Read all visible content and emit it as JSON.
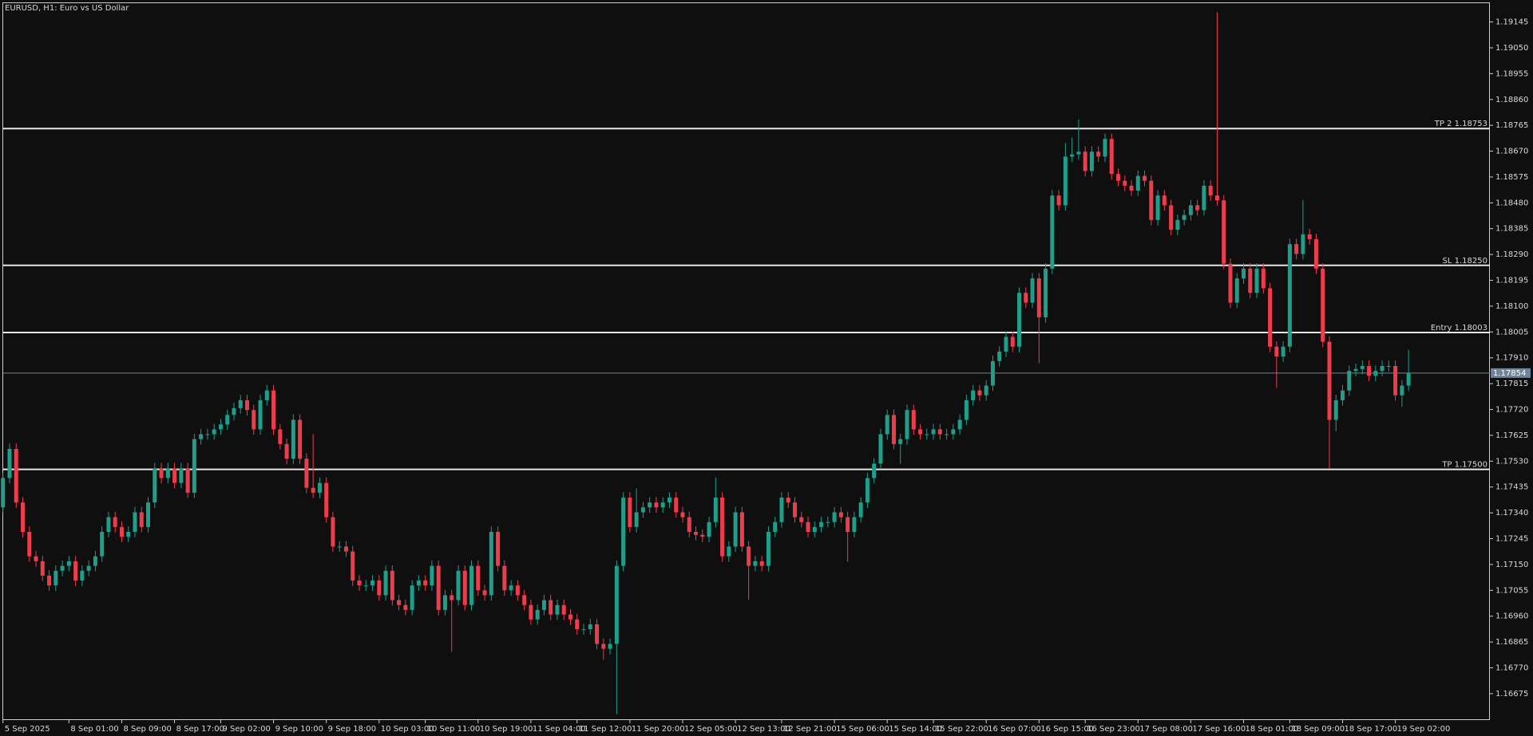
{
  "chart_data": {
    "type": "candlestick",
    "title": "EURUSD, H1:  Euro vs US Dollar",
    "up_color": "#1f9e89",
    "down_color": "#ec3d4d",
    "level_color": "#e6e6e6",
    "price_line_color": "#6f849a",
    "ylim": [
      1.16578,
      1.19217
    ],
    "yticks": [
      1.19145,
      {
        "value": 1.1905,
        "label": "1.19050"
      },
      1.18955,
      {
        "value": 1.1886,
        "label": "1.18860"
      },
      1.18765,
      {
        "value": 1.1867,
        "label": "1.18670"
      },
      1.18575,
      {
        "value": 1.1848,
        "label": "1.18480"
      },
      1.18385,
      {
        "value": 1.1829,
        "label": "1.18290"
      },
      1.18195,
      {
        "value": 1.181,
        "label": "1.18100"
      },
      1.18005,
      {
        "value": 1.1791,
        "label": "1.17910"
      },
      1.17815,
      {
        "value": 1.1772,
        "label": "1.17720"
      },
      1.17625,
      {
        "value": 1.1753,
        "label": "1.17530"
      },
      1.17435,
      {
        "value": 1.1734,
        "label": "1.17340"
      },
      1.17245,
      {
        "value": 1.1715,
        "label": "1.17150"
      },
      1.17055,
      {
        "value": 1.1696,
        "label": "1.16960"
      },
      1.16865,
      {
        "value": 1.1677,
        "label": "1.16770"
      },
      1.16675
    ],
    "levels": [
      {
        "label": "TP 2 1.18753",
        "value": 1.18753
      },
      {
        "label": "SL 1.18250",
        "value": 1.1825
      },
      {
        "label": "Entry 1.18003",
        "value": 1.18003
      },
      {
        "label": "TP 1.17500",
        "value": 1.175
      }
    ],
    "current_price": 1.17854,
    "categories": [
      "5 Sep 2025",
      null,
      null,
      null,
      null,
      null,
      null,
      null,
      null,
      null,
      "8 Sep 01:00",
      null,
      null,
      null,
      null,
      null,
      null,
      null,
      "8 Sep 09:00",
      null,
      null,
      null,
      null,
      null,
      null,
      null,
      "8 Sep 17:00",
      null,
      null,
      null,
      null,
      null,
      null,
      "9 Sep 02:00",
      null,
      null,
      null,
      null,
      null,
      null,
      null,
      "9 Sep 10:00",
      null,
      null,
      null,
      null,
      null,
      null,
      null,
      "9 Sep 18:00",
      null,
      null,
      null,
      null,
      null,
      null,
      null,
      "10 Sep 03:00",
      null,
      null,
      null,
      null,
      null,
      null,
      "10 Sep 11:00",
      null,
      null,
      null,
      null,
      null,
      null,
      null,
      "10 Sep 19:00",
      null,
      null,
      null,
      null,
      null,
      null,
      null,
      "11 Sep 04:00",
      null,
      null,
      null,
      null,
      null,
      null,
      "11 Sep 12:00",
      null,
      null,
      null,
      null,
      null,
      null,
      null,
      "11 Sep 20:00",
      null,
      null,
      null,
      null,
      null,
      null,
      null,
      "12 Sep 05:00",
      null,
      null,
      null,
      null,
      null,
      null,
      null,
      "12 Sep 13:00",
      null,
      null,
      null,
      null,
      null,
      null,
      "12 Sep 21:00",
      null,
      null,
      null,
      null,
      null,
      null,
      null,
      "15 Sep 06:00",
      null,
      null,
      null,
      null,
      null,
      null,
      null,
      "15 Sep 14:00",
      null,
      null,
      null,
      null,
      null,
      null,
      "15 Sep 22:00",
      null,
      null,
      null,
      null,
      null,
      null,
      null,
      "16 Sep 07:00",
      null,
      null,
      null,
      null,
      null,
      null,
      null,
      "16 Sep 15:00",
      null,
      null,
      null,
      null,
      null,
      null,
      "16 Sep 23:00",
      null,
      null,
      null,
      null,
      null,
      null,
      null,
      "17 Sep 08:00",
      null,
      null,
      null,
      null,
      null,
      null,
      null,
      "17 Sep 16:00",
      null,
      null,
      null,
      null,
      null,
      null,
      null,
      "18 Sep 01:00",
      null,
      null,
      null,
      null,
      null,
      null,
      "18 Sep 09:00",
      null,
      null,
      null,
      null,
      null,
      null,
      null,
      "18 Sep 17:00",
      null,
      null,
      null,
      null,
      null,
      null,
      null,
      "19 Sep 02:00",
      null,
      null
    ],
    "open": [
      1.1736,
      1.17468,
      1.17575,
      1.17378,
      1.1727,
      1.1718,
      1.17162,
      1.17109,
      1.17073,
      1.17127,
      1.17145,
      1.17162,
      1.17091,
      1.17127,
      1.17145,
      1.1718,
      1.1727,
      1.17324,
      1.17288,
      1.17252,
      1.1727,
      1.17342,
      1.17288,
      1.17378,
      1.17504,
      1.17468,
      1.17504,
      1.1745,
      1.17504,
      1.17414,
      1.17611,
      1.17629,
      1.17629,
      1.17647,
      1.17665,
      1.177,
      1.17725,
      1.17754,
      1.17718,
      1.17647,
      1.17754,
      1.1779,
      1.17647,
      1.17593,
      1.17539,
      1.17682,
      1.17539,
      1.17432,
      1.17414,
      1.1745,
      1.17324,
      1.17216,
      1.17216,
      1.17198,
      1.17091,
      1.17073,
      1.17073,
      1.17091,
      1.17037,
      1.17127,
      1.17019,
      1.17001,
      1.16983,
      1.17073,
      1.17091,
      1.17073,
      1.17145,
      1.16983,
      1.17037,
      1.17019,
      1.17127,
      1.17001,
      1.17145,
      1.17055,
      1.17037,
      1.1727,
      1.17145,
      1.17055,
      1.17073,
      1.17037,
      1.17001,
      1.16948,
      1.16983,
      1.17019,
      1.16966,
      1.17001,
      1.16966,
      1.16948,
      1.16912,
      1.16912,
      1.1693,
      1.16858,
      1.1684,
      1.16858,
      1.17145,
      1.17396,
      1.17288,
      1.17342,
      1.1736,
      1.17378,
      1.1736,
      1.17378,
      1.17396,
      1.17342,
      1.17324,
      1.1727,
      1.17259,
      1.17252,
      1.17306,
      1.17396,
      1.1718,
      1.17216,
      1.17342,
      1.17216,
      1.17145,
      1.17162,
      1.17145,
      1.1727,
      1.17306,
      1.17396,
      1.17378,
      1.17324,
      1.17306,
      1.1727,
      1.17288,
      1.17306,
      1.17306,
      1.17342,
      1.17324,
      1.1727,
      1.17324,
      1.17378,
      1.17468,
      1.17521,
      1.17629,
      1.177,
      1.17593,
      1.17611,
      1.17718,
      1.17647,
      1.17629,
      1.17629,
      1.17647,
      1.17629,
      1.17629,
      1.17647,
      1.17682,
      1.17754,
      1.1779,
      1.17772,
      1.17808,
      1.17898,
      1.17933,
      1.17987,
      1.17951,
      1.18149,
      1.18113,
      1.18202,
      1.18059,
      1.18238,
      1.18507,
      1.18471,
      1.1865,
      1.18658,
      1.18668,
      1.18597,
      1.18668,
      1.1865,
      1.18715,
      1.18586,
      1.18561,
      1.18543,
      1.18525,
      1.18579,
      1.18561,
      1.18417,
      1.18507,
      1.18471,
      1.18381,
      1.18417,
      1.18435,
      1.18471,
      1.18453,
      1.18543,
      1.18507,
      1.18489,
      1.18256,
      1.18113,
      1.18202,
      1.18238,
      1.18149,
      1.18238,
      1.18166,
      1.17951,
      1.17915,
      1.17951,
      1.18328,
      1.18292,
      1.18364,
      1.18346,
      1.18238,
      1.17969,
      1.17682,
      1.17754,
      1.1779,
      1.17862,
      1.17869,
      1.1788,
      1.17844,
      1.17862,
      1.1788,
      1.1788,
      1.17772,
      1.17808
    ],
    "high": [
      1.17488,
      1.17595,
      1.17595,
      1.17398,
      1.1729,
      1.172,
      1.17182,
      1.17129,
      1.17147,
      1.17165,
      1.17182,
      1.17182,
      1.17147,
      1.17165,
      1.172,
      1.1729,
      1.17344,
      1.17344,
      1.17308,
      1.1729,
      1.17362,
      1.17362,
      1.17398,
      1.17524,
      1.17524,
      1.17524,
      1.17524,
      1.17524,
      1.17524,
      1.17631,
      1.17649,
      1.17649,
      1.17667,
      1.17685,
      1.1772,
      1.17745,
      1.17774,
      1.17774,
      1.17738,
      1.17774,
      1.1781,
      1.1781,
      1.17667,
      1.17613,
      1.17702,
      1.17702,
      1.17559,
      1.17629,
      1.1747,
      1.1747,
      1.17344,
      1.17236,
      1.17236,
      1.17218,
      1.17111,
      1.17093,
      1.17111,
      1.17111,
      1.17147,
      1.17147,
      1.17039,
      1.17021,
      1.17093,
      1.17111,
      1.17111,
      1.17165,
      1.17165,
      1.17057,
      1.17057,
      1.17147,
      1.17147,
      1.17165,
      1.17165,
      1.17075,
      1.1729,
      1.1729,
      1.17165,
      1.17093,
      1.17093,
      1.17057,
      1.17021,
      1.17003,
      1.17039,
      1.17039,
      1.17021,
      1.17021,
      1.16986,
      1.16968,
      1.16932,
      1.1695,
      1.1695,
      1.16878,
      1.16878,
      1.17165,
      1.17416,
      1.17416,
      1.1743,
      1.1738,
      1.17398,
      1.17398,
      1.17398,
      1.17416,
      1.17416,
      1.17362,
      1.17344,
      1.1729,
      1.17279,
      1.17326,
      1.1747,
      1.17416,
      1.17236,
      1.17362,
      1.17362,
      1.17236,
      1.17182,
      1.17182,
      1.1729,
      1.17326,
      1.17416,
      1.17416,
      1.17398,
      1.17344,
      1.17326,
      1.17308,
      1.17326,
      1.17326,
      1.17362,
      1.17362,
      1.17344,
      1.17344,
      1.17398,
      1.17488,
      1.17541,
      1.17649,
      1.1772,
      1.1772,
      1.17631,
      1.17738,
      1.17738,
      1.17667,
      1.17649,
      1.17667,
      1.17667,
      1.17649,
      1.17667,
      1.17702,
      1.17774,
      1.1781,
      1.1781,
      1.17828,
      1.17918,
      1.17953,
      1.18007,
      1.18007,
      1.18169,
      1.18169,
      1.18222,
      1.18222,
      1.18258,
      1.18527,
      1.18527,
      1.187,
      1.1872,
      1.18787,
      1.18688,
      1.18688,
      1.18688,
      1.18735,
      1.18735,
      1.18606,
      1.18581,
      1.18563,
      1.18599,
      1.18599,
      1.18581,
      1.18527,
      1.18527,
      1.18491,
      1.18437,
      1.18455,
      1.18491,
      1.18491,
      1.18563,
      1.18563,
      1.19181,
      1.18509,
      1.18276,
      1.18222,
      1.18258,
      1.18258,
      1.18258,
      1.18258,
      1.18186,
      1.17971,
      1.17971,
      1.18348,
      1.18348,
      1.1849,
      1.18384,
      1.18366,
      1.18258,
      1.17989,
      1.17774,
      1.1781,
      1.17882,
      1.17889,
      1.179,
      1.179,
      1.17882,
      1.179,
      1.179,
      1.179,
      1.17828,
      1.1794
    ],
    "low": [
      1.1734,
      1.17448,
      1.17358,
      1.1725,
      1.1716,
      1.17142,
      1.17089,
      1.17053,
      1.17053,
      1.17107,
      1.17125,
      1.17071,
      1.17071,
      1.17107,
      1.17125,
      1.1716,
      1.1725,
      1.17268,
      1.17232,
      1.17232,
      1.1725,
      1.17268,
      1.17268,
      1.17358,
      1.17448,
      1.17448,
      1.1743,
      1.1743,
      1.17394,
      1.17394,
      1.17591,
      1.17609,
      1.17609,
      1.17627,
      1.17645,
      1.1768,
      1.17705,
      1.17698,
      1.17627,
      1.17627,
      1.17734,
      1.17627,
      1.17573,
      1.17519,
      1.17519,
      1.17519,
      1.17412,
      1.17394,
      1.17394,
      1.17304,
      1.17196,
      1.17196,
      1.17178,
      1.17071,
      1.17053,
      1.17053,
      1.17053,
      1.17017,
      1.17017,
      1.16999,
      1.16981,
      1.16963,
      1.16963,
      1.17053,
      1.17053,
      1.17053,
      1.16963,
      1.16963,
      1.16829,
      1.16999,
      1.16981,
      1.16981,
      1.17035,
      1.17017,
      1.17017,
      1.17125,
      1.17035,
      1.17035,
      1.17017,
      1.16981,
      1.16928,
      1.16928,
      1.16963,
      1.16946,
      1.16946,
      1.16946,
      1.16928,
      1.16892,
      1.16892,
      1.16892,
      1.16838,
      1.168,
      1.1682,
      1.166,
      1.17125,
      1.17268,
      1.17268,
      1.17322,
      1.1734,
      1.1734,
      1.1734,
      1.17358,
      1.17322,
      1.17304,
      1.1725,
      1.17239,
      1.17232,
      1.17232,
      1.17286,
      1.1716,
      1.1716,
      1.17196,
      1.17196,
      1.1702,
      1.17125,
      1.17125,
      1.17125,
      1.1725,
      1.17286,
      1.17358,
      1.17304,
      1.17286,
      1.1725,
      1.1725,
      1.17268,
      1.17286,
      1.17286,
      1.17304,
      1.1716,
      1.1725,
      1.17304,
      1.17358,
      1.17448,
      1.17501,
      1.17609,
      1.17573,
      1.1752,
      1.17591,
      1.17627,
      1.17609,
      1.17609,
      1.17609,
      1.17609,
      1.17609,
      1.17609,
      1.17627,
      1.17662,
      1.17734,
      1.17752,
      1.17752,
      1.17788,
      1.17878,
      1.17913,
      1.17931,
      1.17931,
      1.18093,
      1.18093,
      1.1789,
      1.18039,
      1.18218,
      1.18451,
      1.18451,
      1.1863,
      1.18638,
      1.18577,
      1.18577,
      1.1863,
      1.1863,
      1.18566,
      1.18541,
      1.18523,
      1.18505,
      1.18505,
      1.18541,
      1.18397,
      1.18397,
      1.18451,
      1.18361,
      1.18361,
      1.18397,
      1.18415,
      1.18433,
      1.18433,
      1.18487,
      1.18469,
      1.18236,
      1.18093,
      1.18093,
      1.18182,
      1.18129,
      1.18129,
      1.18146,
      1.17931,
      1.178,
      1.17895,
      1.17931,
      1.18272,
      1.18272,
      1.18326,
      1.18218,
      1.17949,
      1.17503,
      1.1764,
      1.17734,
      1.1777,
      1.17842,
      1.17849,
      1.17824,
      1.17824,
      1.17842,
      1.1786,
      1.17752,
      1.1773,
      1.17788
    ],
    "close": [
      1.17468,
      1.17575,
      1.17378,
      1.1727,
      1.1718,
      1.17162,
      1.17109,
      1.17073,
      1.17127,
      1.17145,
      1.17162,
      1.17091,
      1.17127,
      1.17145,
      1.1718,
      1.1727,
      1.17324,
      1.17288,
      1.17252,
      1.1727,
      1.17342,
      1.17288,
      1.17378,
      1.17504,
      1.17468,
      1.17504,
      1.1745,
      1.17504,
      1.17414,
      1.17611,
      1.17629,
      1.17629,
      1.17647,
      1.17665,
      1.177,
      1.17725,
      1.17754,
      1.17718,
      1.17647,
      1.17754,
      1.1779,
      1.17647,
      1.17593,
      1.17539,
      1.17682,
      1.17539,
      1.17432,
      1.17414,
      1.1745,
      1.17324,
      1.17216,
      1.17216,
      1.17198,
      1.17091,
      1.17073,
      1.17073,
      1.17091,
      1.17037,
      1.17127,
      1.17019,
      1.17001,
      1.16983,
      1.17073,
      1.17091,
      1.17073,
      1.17145,
      1.16983,
      1.17037,
      1.17019,
      1.17127,
      1.17001,
      1.17145,
      1.17055,
      1.17037,
      1.1727,
      1.17145,
      1.17055,
      1.17073,
      1.17037,
      1.17001,
      1.16948,
      1.16983,
      1.17019,
      1.16966,
      1.17001,
      1.16966,
      1.16948,
      1.16912,
      1.16912,
      1.1693,
      1.16858,
      1.1684,
      1.16858,
      1.17145,
      1.17396,
      1.17288,
      1.17342,
      1.1736,
      1.17378,
      1.1736,
      1.17378,
      1.17396,
      1.17342,
      1.17324,
      1.1727,
      1.17259,
      1.17252,
      1.17306,
      1.17396,
      1.1718,
      1.17216,
      1.17342,
      1.17216,
      1.17145,
      1.17162,
      1.17145,
      1.1727,
      1.17306,
      1.17396,
      1.17378,
      1.17324,
      1.17306,
      1.1727,
      1.17288,
      1.17306,
      1.17306,
      1.17342,
      1.17324,
      1.1727,
      1.17324,
      1.17378,
      1.17468,
      1.17521,
      1.17629,
      1.177,
      1.17593,
      1.17611,
      1.17718,
      1.17647,
      1.17629,
      1.17629,
      1.17647,
      1.17629,
      1.17629,
      1.17647,
      1.17682,
      1.17754,
      1.1779,
      1.17772,
      1.17808,
      1.17898,
      1.17933,
      1.17987,
      1.17951,
      1.18149,
      1.18113,
      1.18202,
      1.18059,
      1.18238,
      1.18507,
      1.18471,
      1.1865,
      1.18658,
      1.18668,
      1.18597,
      1.18668,
      1.1865,
      1.18715,
      1.18586,
      1.18561,
      1.18543,
      1.18525,
      1.18579,
      1.18561,
      1.18417,
      1.18507,
      1.18471,
      1.18381,
      1.18417,
      1.18435,
      1.18471,
      1.18453,
      1.18543,
      1.18507,
      1.18489,
      1.18256,
      1.18113,
      1.18202,
      1.18238,
      1.18149,
      1.18238,
      1.18166,
      1.17951,
      1.17915,
      1.17951,
      1.18328,
      1.18292,
      1.18364,
      1.18346,
      1.18238,
      1.17969,
      1.17682,
      1.17754,
      1.1779,
      1.17862,
      1.17869,
      1.1788,
      1.17844,
      1.17862,
      1.1788,
      1.1788,
      1.17772,
      1.17808,
      1.17854
    ]
  }
}
